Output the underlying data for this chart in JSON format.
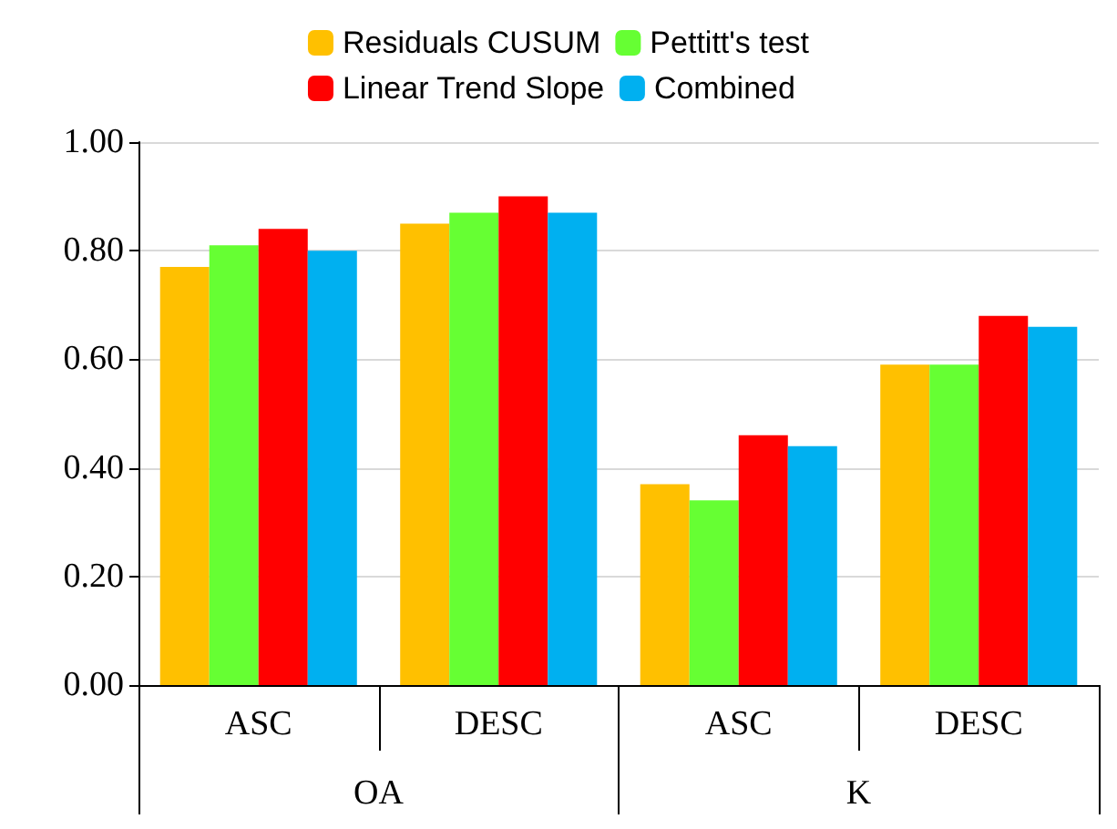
{
  "chart_data": {
    "type": "bar",
    "categories": [
      "ASC",
      "DESC",
      "ASC",
      "DESC"
    ],
    "annotations": [
      "OA",
      "K"
    ],
    "series": [
      {
        "name": "Residuals CUSUM",
        "color": "#ffc000",
        "values": [
          0.77,
          0.85,
          0.37,
          0.59
        ]
      },
      {
        "name": "Pettitt's test",
        "color": "#66ff33",
        "values": [
          0.81,
          0.87,
          0.34,
          0.59
        ]
      },
      {
        "name": "Linear Trend Slope",
        "color": "#ff0000",
        "values": [
          0.84,
          0.9,
          0.46,
          0.68
        ]
      },
      {
        "name": "Combined",
        "color": "#00b0f0",
        "values": [
          0.8,
          0.87,
          0.44,
          0.66
        ]
      }
    ],
    "ylim": [
      0,
      1
    ],
    "yticks": [
      {
        "value": 0,
        "label": "0.00"
      },
      {
        "value": 0.2,
        "label": "0.20"
      },
      {
        "value": 0.4,
        "label": "0.40"
      },
      {
        "value": 0.6,
        "label": "0.60"
      },
      {
        "value": 0.8,
        "label": "0.80"
      },
      {
        "value": 1,
        "label": "1.00"
      }
    ],
    "grid": "y",
    "legend": "top"
  }
}
